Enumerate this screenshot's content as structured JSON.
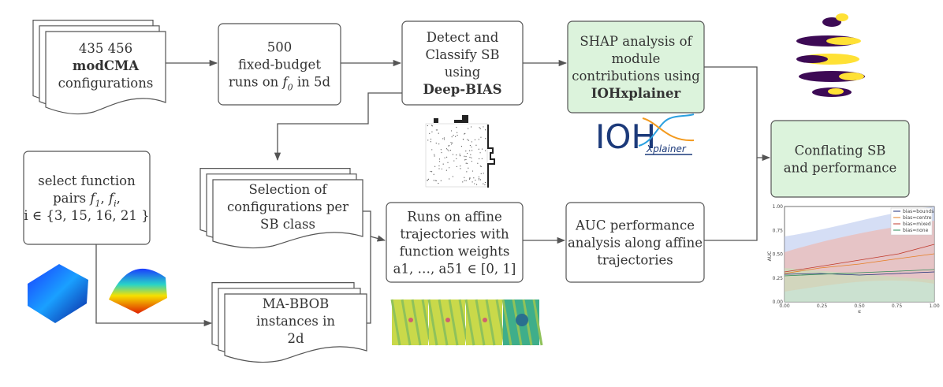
{
  "nodes": [
    {
      "lines": [
        "435 456",
        "modCMA",
        "configurations"
      ]
    },
    {
      "lines": [
        "500",
        "fixed-budget",
        [
          "runs on ",
          "f",
          "0",
          " in 5d"
        ]
      ]
    },
    {
      "lines": [
        "Detect and",
        "Classify SB",
        "using",
        "Deep-BIAS"
      ]
    },
    {
      "lines": [
        "SHAP analysis of",
        "module",
        "contributions using",
        "IOHxplainer"
      ]
    },
    {
      "lines": [
        "Conflating SB",
        "and performance"
      ]
    },
    {
      "lines": [
        "select function",
        [
          "pairs ",
          "f",
          "1",
          ", ",
          "f",
          "i",
          ","
        ],
        "i ∈ {3, 15, 16, 21 }"
      ]
    },
    {
      "lines": [
        "Selection of",
        "configurations per",
        "SB class"
      ]
    },
    {
      "lines": [
        "Runs on affine",
        "trajectories with",
        "function weights",
        "a1, …, a51 ∈ [0, 1]"
      ]
    },
    {
      "lines": [
        "AUC performance",
        "analysis along affine",
        "trajectories"
      ]
    },
    {
      "lines": [
        "MA-BBOB",
        "instances in",
        "2d"
      ]
    }
  ],
  "logo": {
    "main": "IOH",
    "sub": "Xplainer"
  },
  "auc_plot": {
    "ylabel": "AUC",
    "xlabel": "α",
    "yticks": [
      "0.00",
      "0.25",
      "0.50",
      "0.75",
      "1.00"
    ],
    "xticks": [
      "0.00",
      "0.25",
      "0.50",
      "0.75",
      "1.00"
    ],
    "legend": [
      "bias=bounds",
      "bias=centre",
      "bias=mixed",
      "bias=none"
    ]
  }
}
